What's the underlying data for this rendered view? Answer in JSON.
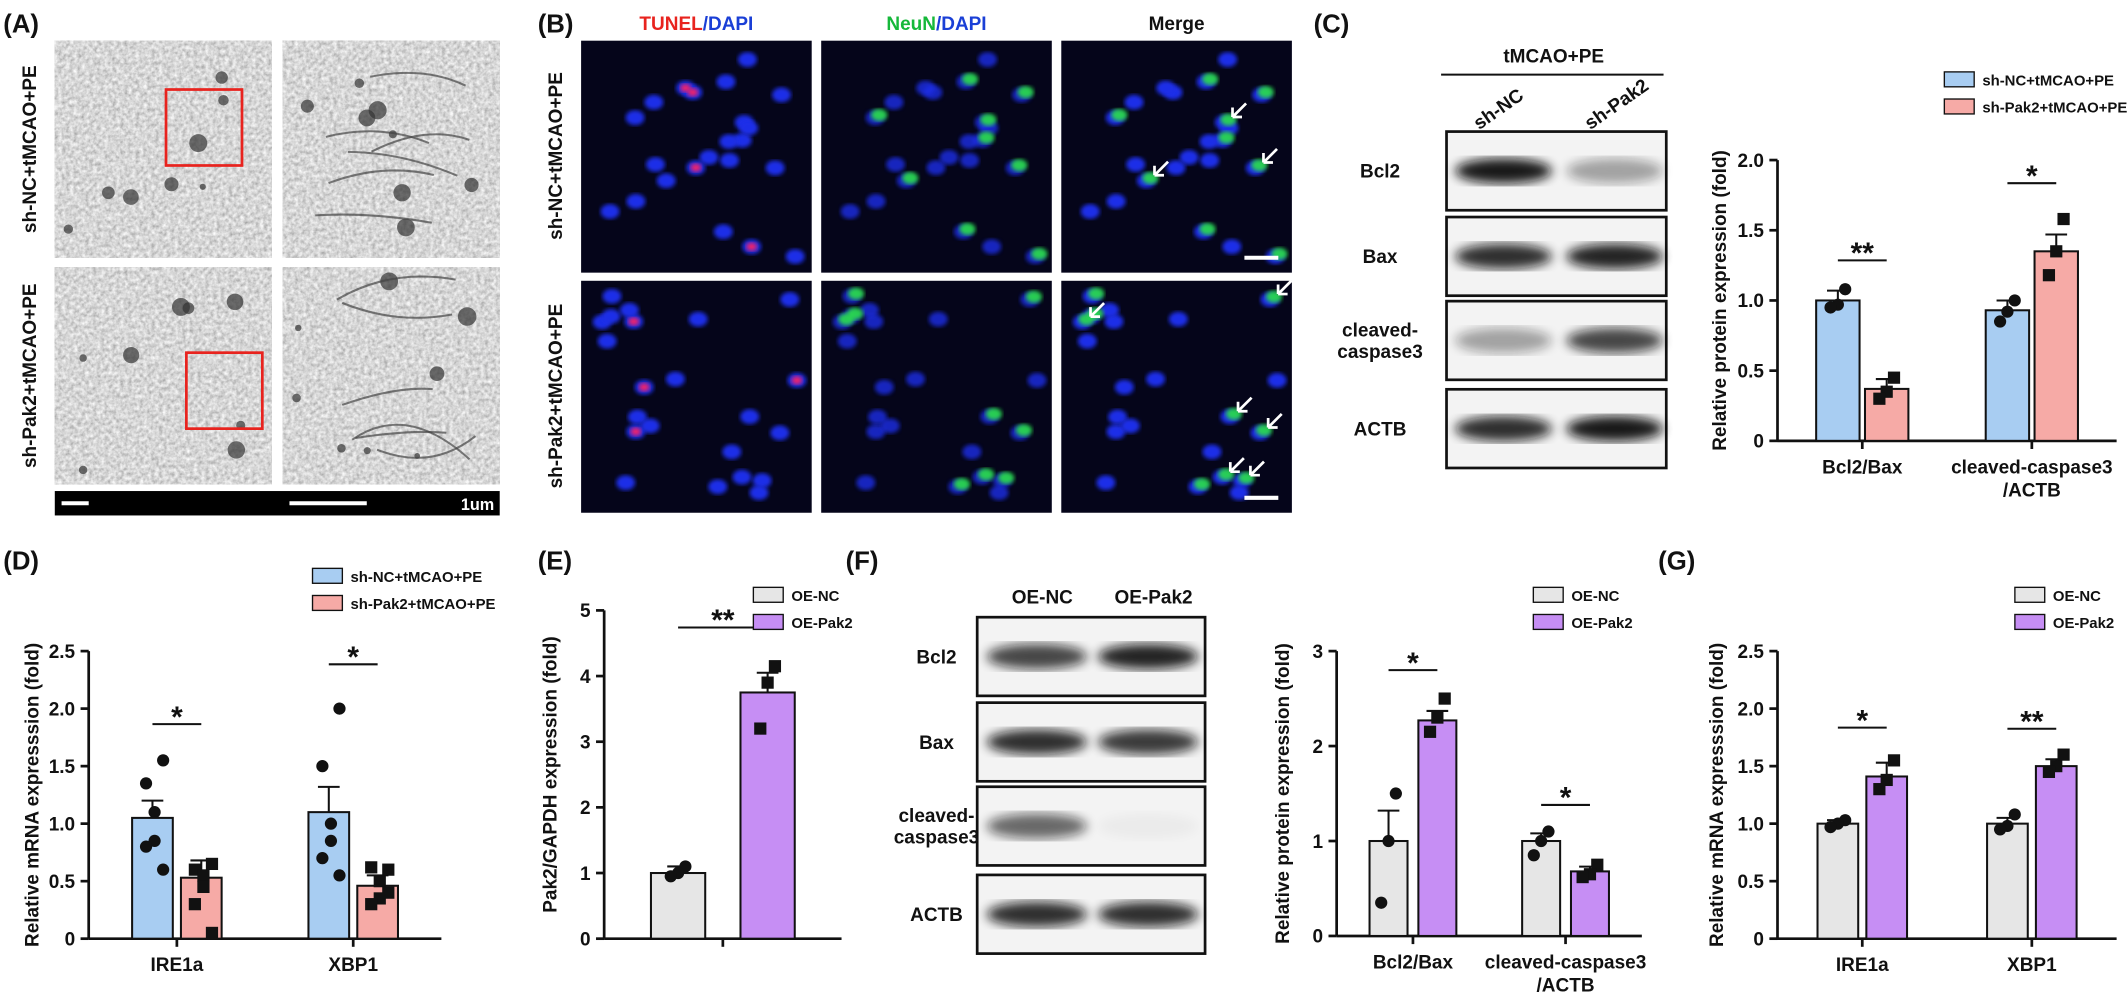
{
  "panels": {
    "A": {
      "label": "(A)",
      "rows": [
        "sh-NC+tMCAO+PE",
        "sh-Pak2+tMCAO+PE"
      ],
      "scale": "1um"
    },
    "B": {
      "label": "(B)",
      "headers": [
        [
          "TUNEL",
          "/DAPI"
        ],
        [
          "NeuN",
          "/DAPI"
        ],
        [
          "Merge"
        ]
      ],
      "rows": [
        "sh-NC+tMCAO+PE",
        "sh-Pak2+tMCAO+PE"
      ]
    },
    "C": {
      "label": "(C)",
      "group": "tMCAO+PE",
      "lanes": [
        "sh-NC",
        "sh-Pak2"
      ],
      "bands": [
        [
          "Bcl2"
        ],
        [
          "Bax"
        ],
        [
          "cleaved-",
          "caspase3"
        ],
        [
          "ACTB"
        ]
      ]
    },
    "D": {
      "label": "(D)"
    },
    "E": {
      "label": "(E)"
    },
    "F": {
      "label": "(F)",
      "lanes": [
        "OE-NC",
        "OE-Pak2"
      ],
      "bands": [
        [
          "Bcl2"
        ],
        [
          "Bax"
        ],
        [
          "cleaved-",
          "caspase3"
        ],
        [
          "ACTB"
        ]
      ]
    },
    "G": {
      "label": "(G)"
    }
  },
  "chart_data": [
    {
      "type": "bar",
      "ylabel": "Relative protein  expression (fold)",
      "categories": [
        [
          "Bcl2/Bax"
        ],
        [
          "cleaved-caspase3",
          "/ACTB"
        ]
      ],
      "ylim": [
        0,
        2
      ],
      "yticks": [
        0,
        0.5,
        {
          "value": 1,
          "label": "1.0"
        },
        1.5,
        {
          "value": 2,
          "label": "2.0"
        }
      ],
      "legend": "upper right",
      "significance": [
        "**",
        "*"
      ],
      "series": [
        {
          "name": "sh-NC+tMCAO+PE",
          "color": "#a8cdf2",
          "marker": "circle",
          "values": [
            1.0,
            0.93
          ],
          "errors": [
            0.07,
            0.07
          ],
          "points": [
            [
              1.08,
              0.97,
              0.95
            ],
            [
              1.0,
              0.92,
              0.85
            ]
          ]
        },
        {
          "name": "sh-Pak2+tMCAO+PE",
          "color": "#f6aaa6",
          "marker": "square",
          "values": [
            0.37,
            1.35
          ],
          "errors": [
            0.07,
            0.12
          ],
          "points": [
            [
              0.45,
              0.35,
              0.3
            ],
            [
              1.58,
              1.35,
              1.18
            ]
          ]
        }
      ]
    },
    {
      "type": "bar",
      "ylabel": "Relative mRNA expresssion (fold)",
      "categories": [
        [
          "IRE1a"
        ],
        [
          "XBP1"
        ]
      ],
      "ylim": [
        0,
        2.5
      ],
      "yticks": [
        0,
        0.5,
        {
          "value": 1,
          "label": "1.0"
        },
        1.5,
        {
          "value": 2,
          "label": "2.0"
        },
        2.5
      ],
      "legend": "upper right",
      "significance": [
        "*",
        "*"
      ],
      "series": [
        {
          "name": "sh-NC+tMCAO+PE",
          "color": "#a8cdf2",
          "marker": "circle",
          "values": [
            1.05,
            1.1
          ],
          "errors": [
            0.15,
            0.22
          ],
          "points": [
            [
              1.55,
              1.35,
              1.1,
              0.85,
              0.8,
              0.6
            ],
            [
              2.0,
              1.5,
              1.0,
              0.85,
              0.7,
              0.55
            ]
          ]
        },
        {
          "name": "sh-Pak2+tMCAO+PE",
          "color": "#f6aaa6",
          "marker": "square",
          "values": [
            0.53,
            0.46
          ],
          "errors": [
            0.15,
            0.09
          ],
          "points": [
            [
              0.65,
              0.6,
              0.55,
              0.45,
              0.3,
              0.05
            ],
            [
              0.6,
              0.62,
              0.5,
              0.35,
              0.3,
              0.4
            ]
          ]
        }
      ]
    },
    {
      "type": "bar",
      "ylabel": "Pak2/GAPDH expression (fold)",
      "categories": [
        null
      ],
      "ylim": [
        0,
        5
      ],
      "yticks": [
        0,
        1,
        2,
        3,
        4,
        5
      ],
      "legend": "upper right",
      "significance": [
        "**"
      ],
      "series": [
        {
          "name": "OE-NC",
          "color": "#e6e6e6",
          "marker": "circle",
          "values": [
            1.0
          ],
          "errors": [
            0.1
          ],
          "points": [
            [
              1.1,
              1.0,
              0.95
            ]
          ]
        },
        {
          "name": "OE-Pak2",
          "color": "#c68ef4",
          "marker": "square",
          "values": [
            3.75
          ],
          "errors": [
            0.3
          ],
          "points": [
            [
              4.15,
              3.9,
              3.2
            ]
          ]
        }
      ]
    },
    {
      "type": "bar",
      "ylabel": "Relative protein  expression (fold)",
      "categories": [
        [
          "Bcl2/Bax"
        ],
        [
          "cleaved-caspase3",
          "/ACTB"
        ]
      ],
      "ylim": [
        0,
        3
      ],
      "yticks": [
        0,
        1,
        2,
        3
      ],
      "legend": "upper right",
      "significance": [
        "*",
        "*"
      ],
      "series": [
        {
          "name": "OE-NC",
          "color": "#e6e6e6",
          "marker": "circle",
          "values": [
            1.0,
            1.0
          ],
          "errors": [
            0.32,
            0.08
          ],
          "points": [
            [
              1.5,
              1.0,
              0.35
            ],
            [
              1.1,
              1.0,
              0.85
            ]
          ]
        },
        {
          "name": "OE-Pak2",
          "color": "#c68ef4",
          "marker": "square",
          "values": [
            2.27,
            0.68
          ],
          "errors": [
            0.1,
            0.05
          ],
          "points": [
            [
              2.5,
              2.3,
              2.15
            ],
            [
              0.75,
              0.65,
              0.62
            ]
          ]
        }
      ]
    },
    {
      "type": "bar",
      "ylabel": "Relative mRNA expresssion (fold)",
      "categories": [
        [
          "IRE1a"
        ],
        [
          "XBP1"
        ]
      ],
      "ylim": [
        0,
        2.5
      ],
      "yticks": [
        0,
        0.5,
        {
          "value": 1,
          "label": "1.0"
        },
        1.5,
        {
          "value": 2,
          "label": "2.0"
        },
        2.5
      ],
      "legend": "upper right",
      "significance": [
        "*",
        "**"
      ],
      "series": [
        {
          "name": "OE-NC",
          "color": "#e6e6e6",
          "marker": "circle",
          "values": [
            1.0,
            1.0
          ],
          "errors": [
            0.03,
            0.05
          ],
          "points": [
            [
              1.03,
              1.0,
              0.97
            ],
            [
              1.08,
              0.98,
              0.95
            ]
          ]
        },
        {
          "name": "OE-Pak2",
          "color": "#c68ef4",
          "marker": "square",
          "values": [
            1.41,
            1.5
          ],
          "errors": [
            0.12,
            0.06
          ],
          "points": [
            [
              1.55,
              1.38,
              1.3
            ],
            [
              1.6,
              1.5,
              1.45
            ]
          ]
        }
      ]
    }
  ]
}
